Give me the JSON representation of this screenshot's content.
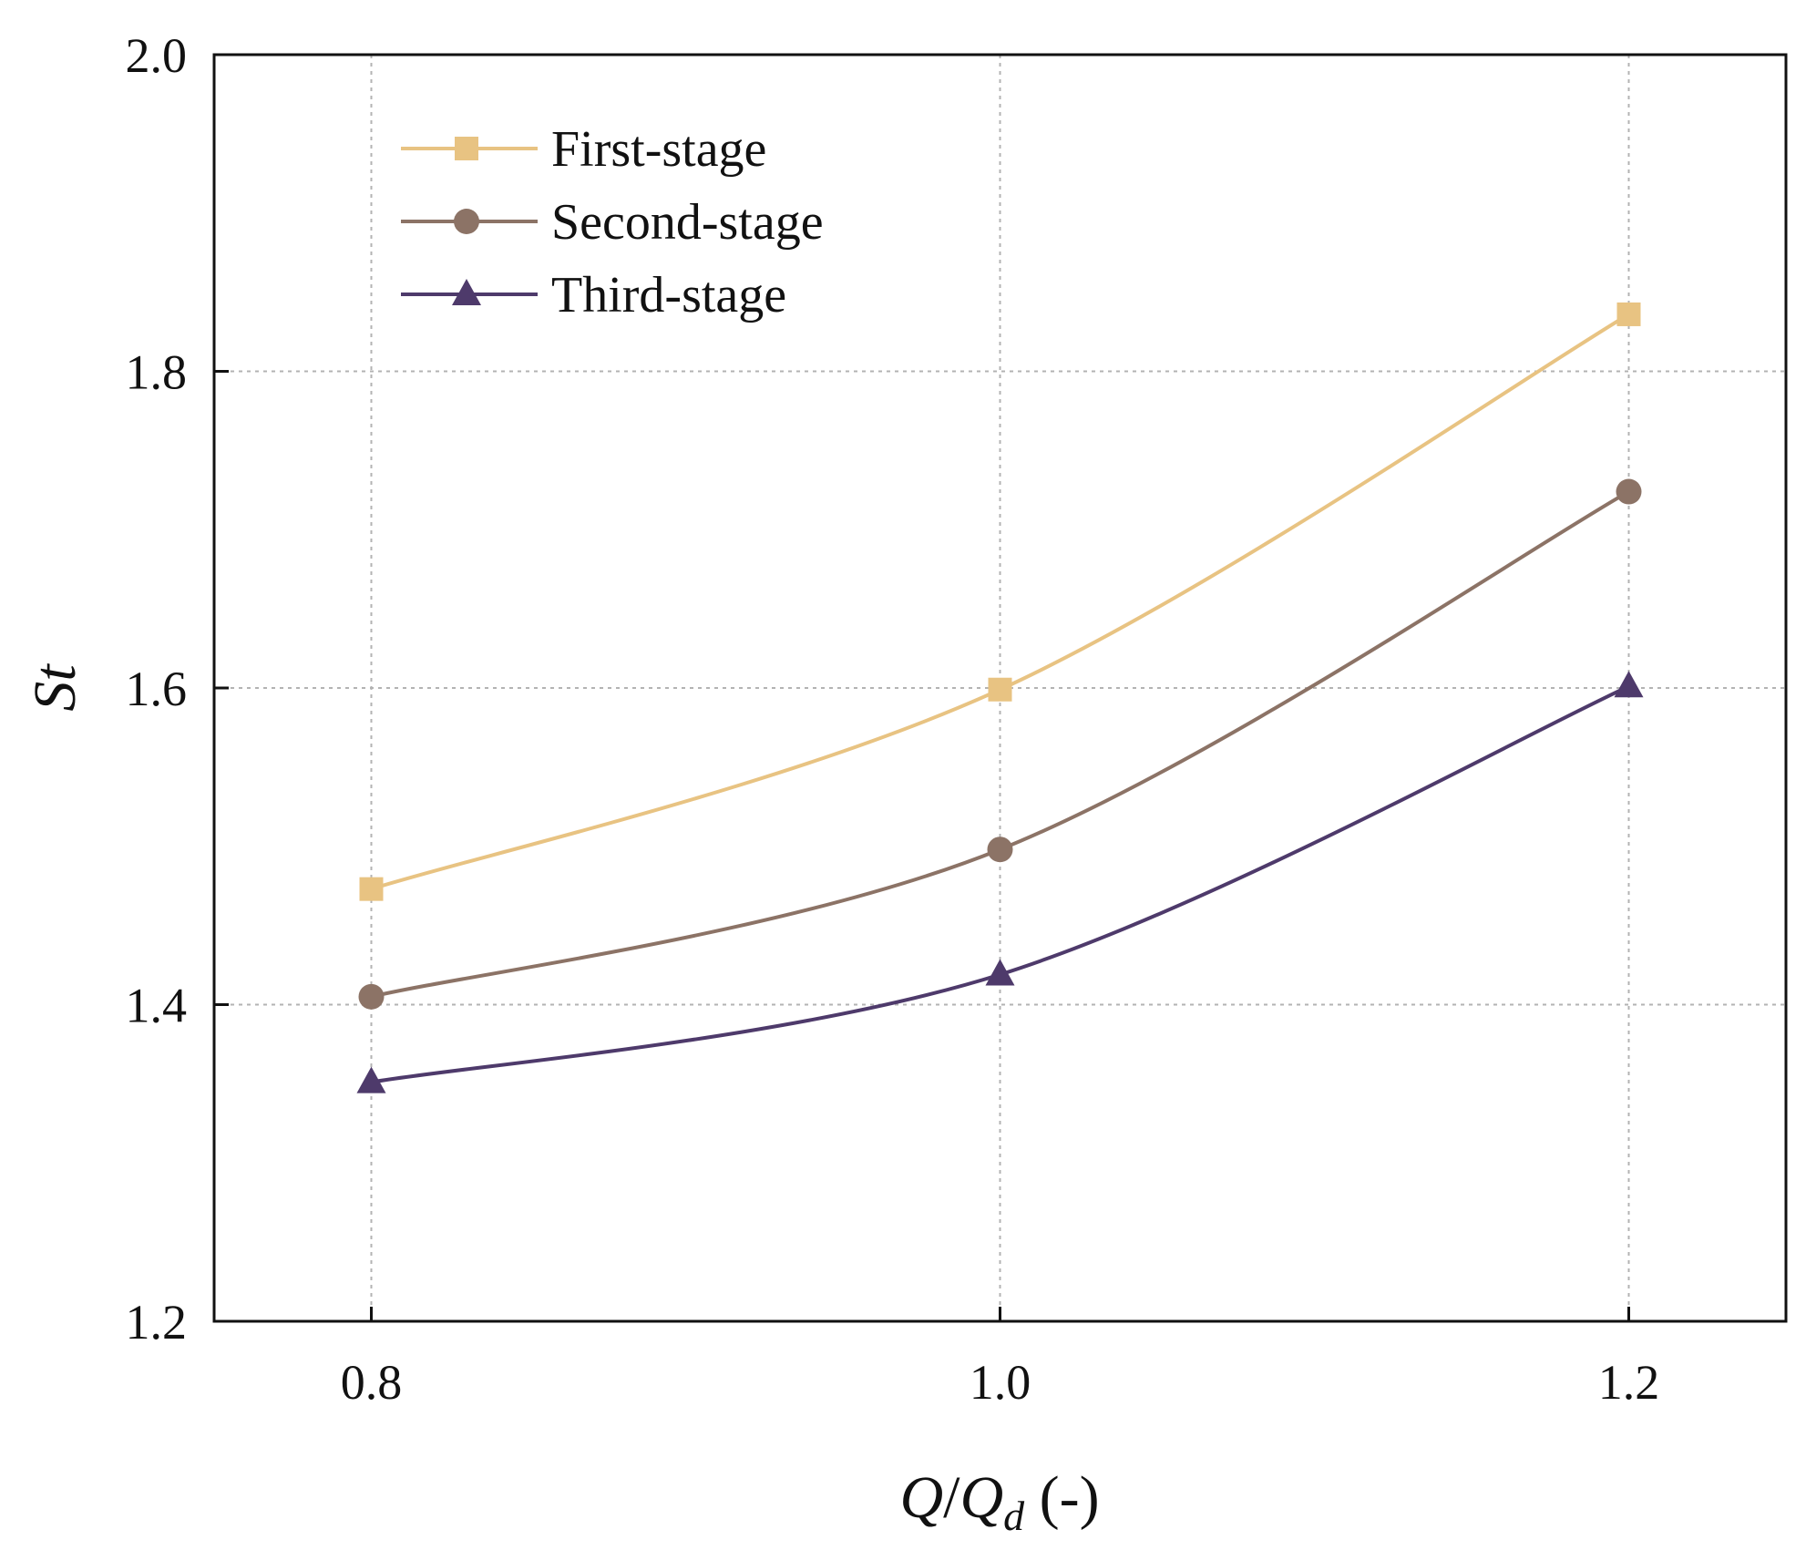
{
  "chart_data": {
    "type": "line",
    "title": "",
    "xlabel": {
      "main": "Q",
      "sep": "/",
      "sub_main": "Q",
      "subscript": "d",
      "unit": " (-)"
    },
    "ylabel": "St",
    "xlim": [
      0.75,
      1.25
    ],
    "ylim": [
      1.2,
      2.0
    ],
    "x": [
      0.8,
      1.0,
      1.2
    ],
    "x_ticks": [
      0.8,
      1.0,
      1.2
    ],
    "x_tick_labels": [
      "0.8",
      "1.0",
      "1.2"
    ],
    "y_ticks": [
      1.2,
      1.4,
      1.6,
      1.8,
      2.0
    ],
    "y_tick_labels": [
      "1.2",
      "1.4",
      "1.6",
      "1.8",
      "2.0"
    ],
    "grid": true,
    "legend_position": "top-left",
    "series": [
      {
        "name": "First-stage",
        "marker": "square",
        "color": "#E8C382",
        "values": [
          1.473,
          1.599,
          1.836
        ]
      },
      {
        "name": "Second-stage",
        "marker": "circle",
        "color": "#8C7366",
        "values": [
          1.405,
          1.498,
          1.724
        ]
      },
      {
        "name": "Third-stage",
        "marker": "triangle",
        "color": "#4E3A6B",
        "values": [
          1.351,
          1.419,
          1.601
        ]
      }
    ]
  }
}
